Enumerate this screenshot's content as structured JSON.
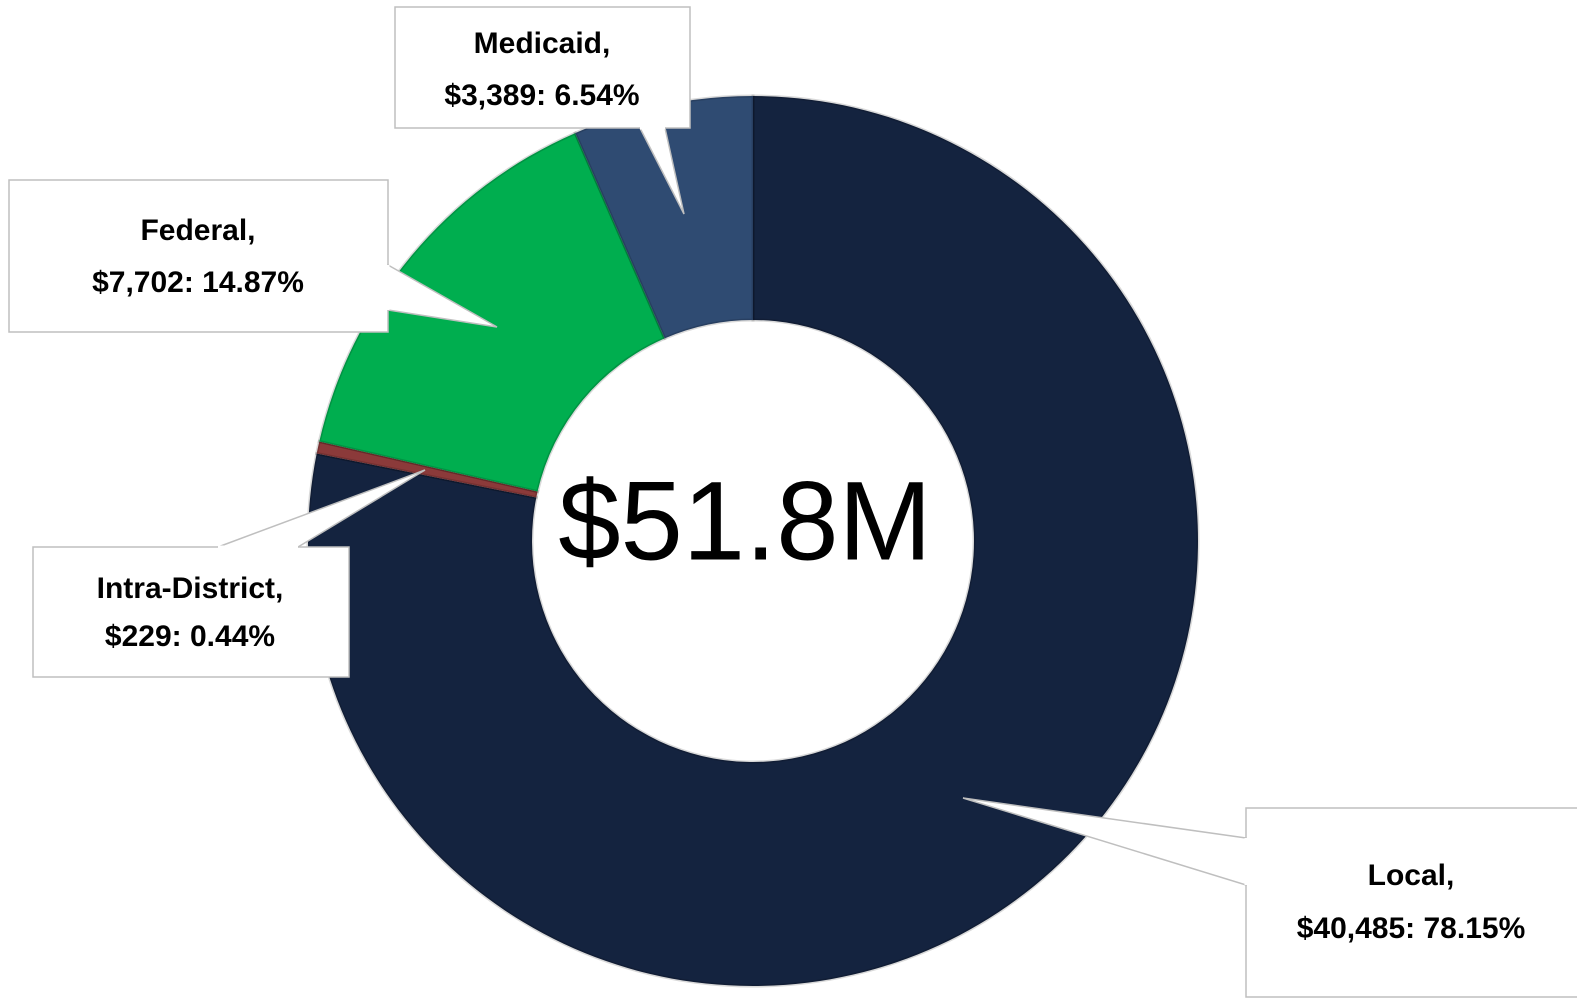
{
  "chart_data": {
    "type": "donut",
    "categories": [
      "Local,",
      "Intra-District,",
      "Federal,",
      "Medicaid,"
    ],
    "values": [
      40485,
      229,
      7702,
      3389
    ],
    "percents": [
      78.15,
      0.44,
      14.87,
      6.54
    ],
    "data_labels": [
      "$40,485: 78.15%",
      "$229: 0.44%",
      "$7,702: 14.87%",
      "$3,389: 6.54%"
    ],
    "colors": [
      "#14233f",
      "#8b3a3a",
      "#00ae4f",
      "#2f4b72"
    ],
    "center_label": "$51.8M"
  }
}
